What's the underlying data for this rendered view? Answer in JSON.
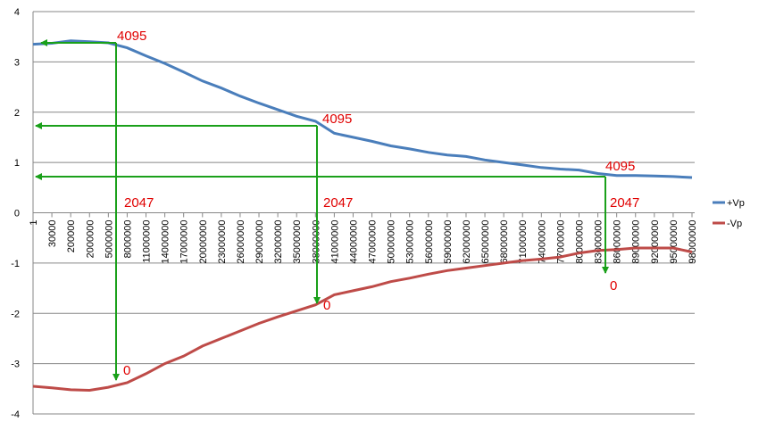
{
  "chart_data": {
    "type": "line",
    "categories": [
      "1",
      "30000",
      "200000",
      "2000000",
      "5000000",
      "8000000",
      "11000000",
      "14000000",
      "17000000",
      "20000000",
      "23000000",
      "26000000",
      "29000000",
      "32000000",
      "35000000",
      "38000000",
      "41000000",
      "44000000",
      "47000000",
      "50000000",
      "53000000",
      "56000000",
      "59000000",
      "62000000",
      "65000000",
      "68000000",
      "71000000",
      "74000000",
      "77000000",
      "80000000",
      "83000000",
      "86000000",
      "89000000",
      "92000000",
      "95000000",
      "98000000"
    ],
    "series": [
      {
        "name": "+Vp",
        "color": "#4a7ebb",
        "values": [
          3.35,
          3.37,
          3.42,
          3.4,
          3.38,
          3.28,
          3.12,
          2.97,
          2.8,
          2.62,
          2.48,
          2.32,
          2.18,
          2.05,
          1.92,
          1.82,
          1.58,
          1.5,
          1.42,
          1.33,
          1.27,
          1.2,
          1.15,
          1.12,
          1.05,
          1.0,
          0.95,
          0.9,
          0.87,
          0.85,
          0.78,
          0.74,
          0.74,
          0.73,
          0.72,
          0.7
        ]
      },
      {
        "name": "-Vp",
        "color": "#be4b48",
        "values": [
          -3.45,
          -3.48,
          -3.52,
          -3.53,
          -3.47,
          -3.38,
          -3.2,
          -3.0,
          -2.85,
          -2.65,
          -2.5,
          -2.35,
          -2.2,
          -2.07,
          -1.95,
          -1.83,
          -1.63,
          -1.55,
          -1.47,
          -1.37,
          -1.3,
          -1.22,
          -1.15,
          -1.1,
          -1.05,
          -1.0,
          -0.95,
          -0.92,
          -0.88,
          -0.8,
          -0.75,
          -0.73,
          -0.7,
          -0.7,
          -0.7,
          -0.78
        ]
      }
    ],
    "ylim": [
      -4,
      4
    ],
    "yticks": [
      -4,
      -3,
      -2,
      -1,
      0,
      1,
      2,
      3,
      4
    ],
    "grid": true,
    "legend": "right",
    "annotations": [
      "4095",
      "2047",
      "0",
      "4095",
      "2047",
      "0",
      "4095",
      "2047",
      "0"
    ]
  }
}
